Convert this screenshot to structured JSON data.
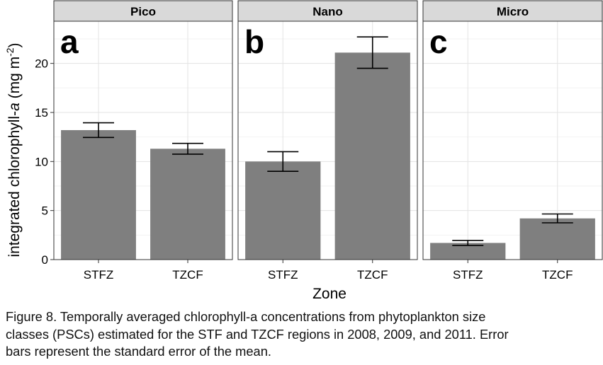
{
  "chart_data": {
    "type": "bar",
    "xlabel": "Zone",
    "ylabel": {
      "prefix": "integrated chlorophyll-",
      "italic": "a",
      "unit_start": " (mg m",
      "unit_sup": "-2",
      "unit_end": ")"
    },
    "ylim": [
      0,
      24.3
    ],
    "yticks": [
      0,
      5,
      10,
      15,
      20
    ],
    "grid": true,
    "bar_color": "#7f7f7f",
    "strip_color": "#d9d9d9",
    "categories": [
      "STFZ",
      "TZCF"
    ],
    "panels": [
      {
        "name": "Pico",
        "label": "a",
        "values": [
          13.2,
          11.3
        ],
        "se": [
          0.75,
          0.55
        ]
      },
      {
        "name": "Nano",
        "label": "b",
        "values": [
          10.0,
          21.1
        ],
        "se": [
          1.0,
          1.6
        ]
      },
      {
        "name": "Micro",
        "label": "c",
        "values": [
          1.7,
          4.2
        ],
        "se": [
          0.25,
          0.45
        ]
      }
    ]
  },
  "caption": {
    "lines": [
      "Figure 8. Temporally averaged chlorophyll-a concentrations from phytoplankton size",
      "classes (PSCs) estimated for the STF and TZCF regions in 2008, 2009, and 2011. Error",
      "bars represent the standard error of the mean."
    ]
  }
}
